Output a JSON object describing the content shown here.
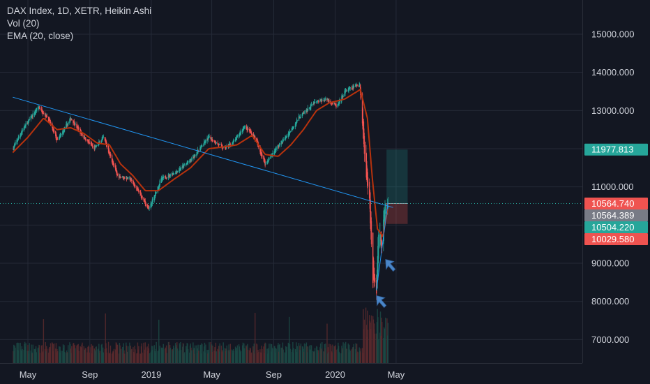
{
  "legend": {
    "line1": "DAX Index, 1D, XETR, Heikin Ashi",
    "line2": "Vol (20)",
    "line3": "EMA (20, close)"
  },
  "colors": {
    "background": "#131722",
    "grid": "#242a37",
    "up": "#26a69a",
    "down": "#ef5350",
    "ema": "#b7320d",
    "trendline": "#2196f3",
    "arrow": "#4a86c8"
  },
  "chart_data": {
    "type": "candlestick",
    "title": "DAX Index, 1D, XETR, Heikin Ashi",
    "indicators": [
      "Vol (20)",
      "EMA (20, close)"
    ],
    "x_ticks": [
      "May",
      "Sep",
      "2019",
      "May",
      "Sep",
      "2020",
      "May"
    ],
    "x_range": [
      "2018-04-01",
      "2020-06-30"
    ],
    "y_ticks": [
      "15000.000",
      "14000.000",
      "13000.000",
      "11000.000",
      "9000.000",
      "8000.000",
      "7000.000"
    ],
    "ylim": [
      6400,
      15800
    ],
    "price_labels": [
      {
        "value": 11977.813,
        "text": "11977.813",
        "kind": "target",
        "bg": "#26a69a"
      },
      {
        "value": 10564.74,
        "text": "10564.740",
        "kind": "last",
        "bg": "#ef5350"
      },
      {
        "value": 10564.389,
        "text": "10564.389",
        "kind": "entry",
        "bg": "#787b86"
      },
      {
        "value": 10504.22,
        "text": "10504.220",
        "kind": "ema",
        "bg": "#26a69a"
      },
      {
        "value": 10029.58,
        "text": "10029.580",
        "kind": "stop",
        "bg": "#ef5350"
      }
    ],
    "price_path": [
      [
        "2018-04-01",
        12000
      ],
      [
        "2018-04-20",
        12500
      ],
      [
        "2018-05-22",
        13100
      ],
      [
        "2018-06-10",
        12800
      ],
      [
        "2018-06-28",
        12200
      ],
      [
        "2018-07-25",
        12800
      ],
      [
        "2018-08-20",
        12300
      ],
      [
        "2018-09-10",
        12000
      ],
      [
        "2018-09-28",
        12300
      ],
      [
        "2018-10-25",
        11300
      ],
      [
        "2018-11-20",
        11200
      ],
      [
        "2018-12-10",
        10800
      ],
      [
        "2018-12-27",
        10400
      ],
      [
        "2019-01-20",
        11200
      ],
      [
        "2019-02-20",
        11400
      ],
      [
        "2019-03-20",
        11700
      ],
      [
        "2019-04-25",
        12300
      ],
      [
        "2019-05-25",
        12000
      ],
      [
        "2019-06-15",
        12200
      ],
      [
        "2019-07-05",
        12600
      ],
      [
        "2019-07-25",
        12300
      ],
      [
        "2019-08-15",
        11600
      ],
      [
        "2019-09-05",
        12000
      ],
      [
        "2019-09-25",
        12300
      ],
      [
        "2019-10-20",
        12800
      ],
      [
        "2019-11-20",
        13200
      ],
      [
        "2019-12-15",
        13300
      ],
      [
        "2020-01-05",
        13100
      ],
      [
        "2020-01-20",
        13500
      ],
      [
        "2020-02-19",
        13700
      ],
      [
        "2020-02-28",
        11900
      ],
      [
        "2020-03-10",
        10500
      ],
      [
        "2020-03-16",
        8600
      ],
      [
        "2020-03-23",
        8300
      ],
      [
        "2020-03-27",
        9900
      ],
      [
        "2020-04-03",
        9500
      ],
      [
        "2020-04-09",
        10500
      ],
      [
        "2020-04-15",
        10564
      ]
    ],
    "ema_path": [
      [
        "2018-04-01",
        11900
      ],
      [
        "2018-05-01",
        12300
      ],
      [
        "2018-06-01",
        12800
      ],
      [
        "2018-06-28",
        12500
      ],
      [
        "2018-07-25",
        12550
      ],
      [
        "2018-08-20",
        12400
      ],
      [
        "2018-09-15",
        12150
      ],
      [
        "2018-10-10",
        12100
      ],
      [
        "2018-11-01",
        11600
      ],
      [
        "2018-11-25",
        11300
      ],
      [
        "2018-12-20",
        10900
      ],
      [
        "2019-01-15",
        10900
      ],
      [
        "2019-02-15",
        11200
      ],
      [
        "2019-03-20",
        11500
      ],
      [
        "2019-04-25",
        12000
      ],
      [
        "2019-05-25",
        12050
      ],
      [
        "2019-06-20",
        12100
      ],
      [
        "2019-07-20",
        12350
      ],
      [
        "2019-08-15",
        11850
      ],
      [
        "2019-09-10",
        11800
      ],
      [
        "2019-10-05",
        12100
      ],
      [
        "2019-10-30",
        12500
      ],
      [
        "2019-11-25",
        13000
      ],
      [
        "2019-12-20",
        13200
      ],
      [
        "2020-01-20",
        13300
      ],
      [
        "2020-02-20",
        13550
      ],
      [
        "2020-03-05",
        12800
      ],
      [
        "2020-03-15",
        11200
      ],
      [
        "2020-03-25",
        9900
      ],
      [
        "2020-04-05",
        9700
      ],
      [
        "2020-04-15",
        10504
      ]
    ],
    "trendline": {
      "from": [
        "2018-04-01",
        13350
      ],
      "to": [
        "2020-04-25",
        10460
      ]
    },
    "position": {
      "start": "2020-04-12",
      "end": "2020-05-24",
      "target": 11977.813,
      "entry": 10564.389,
      "stop": 10029.58
    },
    "arrows": [
      {
        "date": "2020-03-23",
        "price": 8150
      },
      {
        "date": "2020-04-10",
        "price": 9100
      }
    ]
  }
}
